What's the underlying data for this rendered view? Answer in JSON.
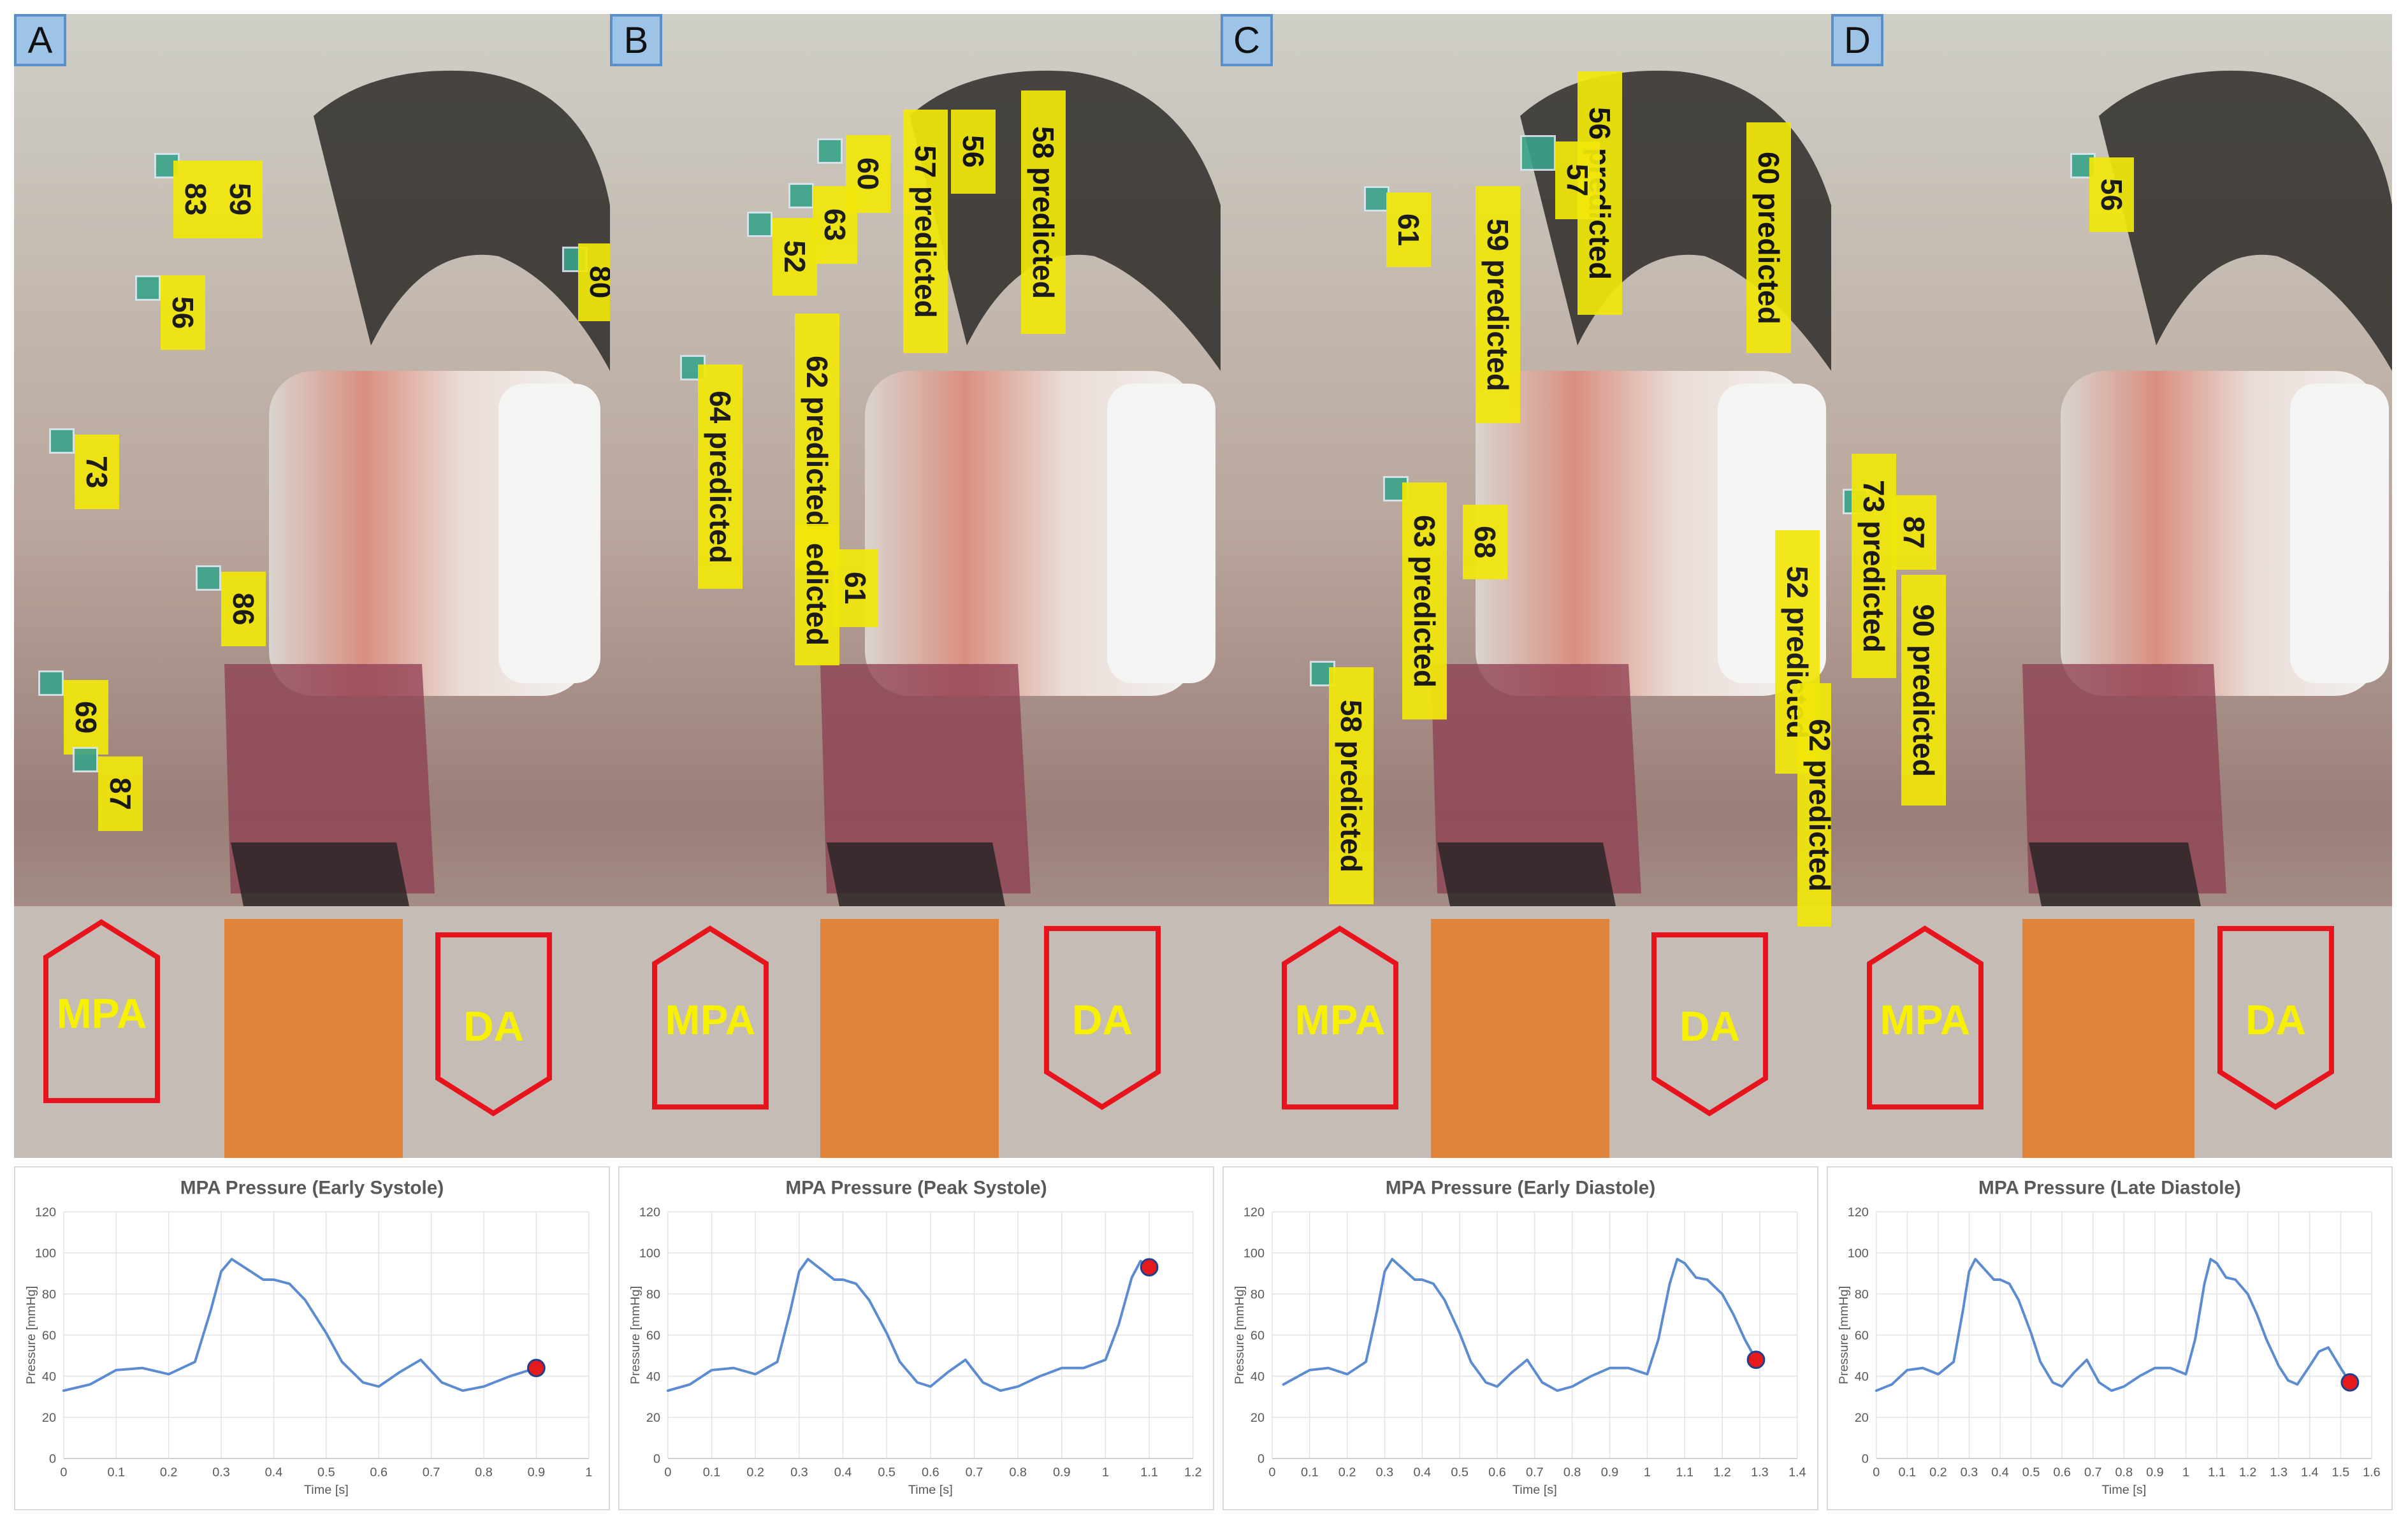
{
  "colors": {
    "label_bg": "#f1e70a",
    "region_border": "#e8141d",
    "region_text": "#f7f100",
    "curve": "#5b8bd0",
    "dot": "#e41a1c",
    "panel_letter_bg": "#9dc3e6"
  },
  "panels": [
    {
      "letter": "A",
      "regions": {
        "left": "MPA",
        "right": "DA"
      },
      "tags": [
        "83",
        "59",
        "80",
        "56",
        "73",
        "86",
        "69",
        "87"
      ]
    },
    {
      "letter": "B",
      "regions": {
        "left": "MPA",
        "right": "DA"
      },
      "tags": [
        "60",
        "57 predicted",
        "56",
        "58 predicted",
        "63",
        "52",
        "62 predicted",
        "64 predicted",
        "edicted",
        "61"
      ]
    },
    {
      "letter": "C",
      "regions": {
        "left": "MPA",
        "right": "DA"
      },
      "tags": [
        "56 predicted",
        "57",
        "60 predicted",
        "61",
        "59 predicted",
        "63 predicted",
        "68",
        "58 predicted",
        "52 predicted",
        "62 predicted"
      ]
    },
    {
      "letter": "D",
      "regions": {
        "left": "MPA",
        "right": "DA"
      },
      "tags": [
        "56",
        "73 predicted",
        "87",
        "90 predicted"
      ]
    }
  ],
  "chart_data": [
    {
      "type": "line",
      "title": "MPA Pressure (Early Systole)",
      "xlabel": "Time [s]",
      "ylabel": "Pressure [mmHg]",
      "xlim": [
        0,
        1
      ],
      "ylim": [
        0,
        120
      ],
      "x_ticks": [
        "0",
        "0.1",
        "0.2",
        "0.3",
        "0.4",
        "0.5",
        "0.6",
        "0.7",
        "0.8",
        "0.9",
        "1"
      ],
      "y_ticks": [
        "0",
        "20",
        "40",
        "60",
        "80",
        "100",
        "120"
      ],
      "grid": true,
      "series": [
        {
          "x": [
            0,
            0.05,
            0.1,
            0.15,
            0.2,
            0.25,
            0.28,
            0.3,
            0.32,
            0.35,
            0.38,
            0.4,
            0.43,
            0.46,
            0.5,
            0.53,
            0.57,
            0.6,
            0.64,
            0.68,
            0.72,
            0.76,
            0.8,
            0.85,
            0.9
          ],
          "y": [
            33,
            36,
            43,
            44,
            41,
            47,
            72,
            91,
            97,
            92,
            87,
            87,
            85,
            77,
            61,
            47,
            37,
            35,
            42,
            48,
            37,
            33,
            35,
            40,
            44
          ]
        }
      ],
      "marker": {
        "x": 0.9,
        "y": 44
      }
    },
    {
      "type": "line",
      "title": "MPA Pressure (Peak Systole)",
      "xlabel": "Time [s]",
      "ylabel": "Pressure [mmHg]",
      "xlim": [
        0,
        1.2
      ],
      "ylim": [
        0,
        120
      ],
      "x_ticks": [
        "0",
        "0.1",
        "0.2",
        "0.3",
        "0.4",
        "0.5",
        "0.6",
        "0.7",
        "0.8",
        "0.9",
        "1",
        "1.1",
        "1.2"
      ],
      "y_ticks": [
        "0",
        "20",
        "40",
        "60",
        "80",
        "100",
        "120"
      ],
      "grid": true,
      "series": [
        {
          "x": [
            0,
            0.05,
            0.1,
            0.15,
            0.2,
            0.25,
            0.28,
            0.3,
            0.32,
            0.35,
            0.38,
            0.4,
            0.43,
            0.46,
            0.5,
            0.53,
            0.57,
            0.6,
            0.64,
            0.68,
            0.72,
            0.76,
            0.8,
            0.85,
            0.9,
            0.95,
            1.0,
            1.03,
            1.06,
            1.08,
            1.1
          ],
          "y": [
            33,
            36,
            43,
            44,
            41,
            47,
            72,
            91,
            97,
            92,
            87,
            87,
            85,
            77,
            61,
            47,
            37,
            35,
            42,
            48,
            37,
            33,
            35,
            40,
            44,
            44,
            48,
            65,
            88,
            96,
            93
          ]
        }
      ],
      "marker": {
        "x": 1.1,
        "y": 93
      }
    },
    {
      "type": "line",
      "title": "MPA Pressure (Early Diastole)",
      "xlabel": "Time [s]",
      "ylabel": "Pressure [mmHg]",
      "xlim": [
        0,
        1.4
      ],
      "ylim": [
        0,
        120
      ],
      "x_ticks": [
        "0",
        "0.1",
        "0.2",
        "0.3",
        "0.4",
        "0.5",
        "0.6",
        "0.7",
        "0.8",
        "0.9",
        "1",
        "1.1",
        "1.2",
        "1.3",
        "1.4"
      ],
      "y_ticks": [
        "0",
        "20",
        "40",
        "60",
        "80",
        "100",
        "120"
      ],
      "grid": true,
      "series": [
        {
          "x": [
            0.03,
            0.05,
            0.1,
            0.15,
            0.2,
            0.25,
            0.28,
            0.3,
            0.32,
            0.35,
            0.38,
            0.4,
            0.43,
            0.46,
            0.5,
            0.53,
            0.57,
            0.6,
            0.64,
            0.68,
            0.72,
            0.76,
            0.8,
            0.85,
            0.9,
            0.95,
            1.0,
            1.03,
            1.06,
            1.08,
            1.1,
            1.13,
            1.16,
            1.2,
            1.23,
            1.26,
            1.29
          ],
          "y": [
            36,
            38,
            43,
            44,
            41,
            47,
            72,
            91,
            97,
            92,
            87,
            87,
            85,
            77,
            61,
            47,
            37,
            35,
            42,
            48,
            37,
            33,
            35,
            40,
            44,
            44,
            41,
            58,
            85,
            97,
            95,
            88,
            87,
            80,
            70,
            58,
            48
          ]
        }
      ],
      "marker": {
        "x": 1.29,
        "y": 48
      }
    },
    {
      "type": "line",
      "title": "MPA Pressure (Late Diastole)",
      "xlabel": "Time [s]",
      "ylabel": "Pressure [mmHg]",
      "xlim": [
        0,
        1.6
      ],
      "ylim": [
        0,
        120
      ],
      "x_ticks": [
        "0",
        "0.1",
        "0.2",
        "0.3",
        "0.4",
        "0.5",
        "0.6",
        "0.7",
        "0.8",
        "0.9",
        "1",
        "1.1",
        "1.2",
        "1.3",
        "1.4",
        "1.5",
        "1.6"
      ],
      "y_ticks": [
        "0",
        "20",
        "40",
        "60",
        "80",
        "100",
        "120"
      ],
      "grid": true,
      "series": [
        {
          "x": [
            0,
            0.05,
            0.1,
            0.15,
            0.2,
            0.25,
            0.28,
            0.3,
            0.32,
            0.35,
            0.38,
            0.4,
            0.43,
            0.46,
            0.5,
            0.53,
            0.57,
            0.6,
            0.64,
            0.68,
            0.72,
            0.76,
            0.8,
            0.85,
            0.9,
            0.95,
            1.0,
            1.03,
            1.06,
            1.08,
            1.1,
            1.13,
            1.16,
            1.2,
            1.23,
            1.26,
            1.3,
            1.33,
            1.36,
            1.4,
            1.43,
            1.46,
            1.5,
            1.53
          ],
          "y": [
            33,
            36,
            43,
            44,
            41,
            47,
            72,
            91,
            97,
            92,
            87,
            87,
            85,
            77,
            61,
            47,
            37,
            35,
            42,
            48,
            37,
            33,
            35,
            40,
            44,
            44,
            41,
            58,
            85,
            97,
            95,
            88,
            87,
            80,
            70,
            58,
            45,
            38,
            36,
            45,
            52,
            54,
            44,
            37
          ]
        }
      ],
      "marker": {
        "x": 1.53,
        "y": 37
      }
    }
  ]
}
